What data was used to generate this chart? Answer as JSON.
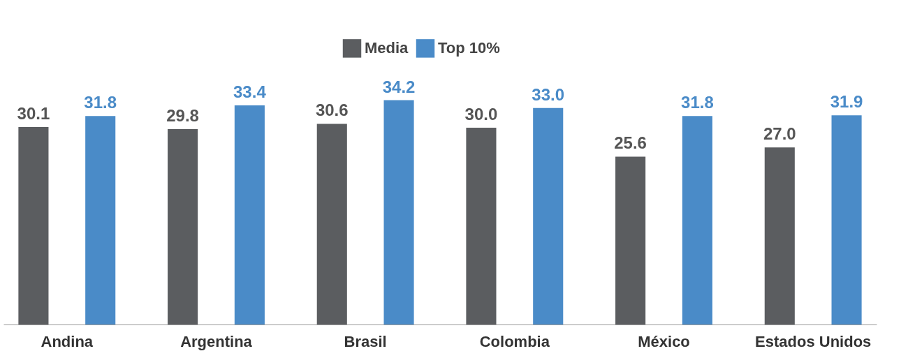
{
  "chart_data": {
    "type": "bar",
    "categories": [
      "Andina",
      "Argentina",
      "Brasil",
      "Colombia",
      "México",
      "Estados Unidos"
    ],
    "series": [
      {
        "name": "Media",
        "color": "#5b5d60",
        "values": [
          30.1,
          29.8,
          30.6,
          30.0,
          25.6,
          27.0
        ],
        "value_labels": [
          "30.1",
          "29.8",
          "30.6",
          "30.0",
          "25.6",
          "27.0"
        ]
      },
      {
        "name": "Top 10%",
        "color": "#4a8bc8",
        "values": [
          31.8,
          33.4,
          34.2,
          33.0,
          31.8,
          31.9
        ],
        "value_labels": [
          "31.8",
          "33.4",
          "34.2",
          "33.0",
          "31.8",
          "31.9"
        ]
      }
    ],
    "legend": "top",
    "grid": false,
    "tick_labels": "x"
  }
}
